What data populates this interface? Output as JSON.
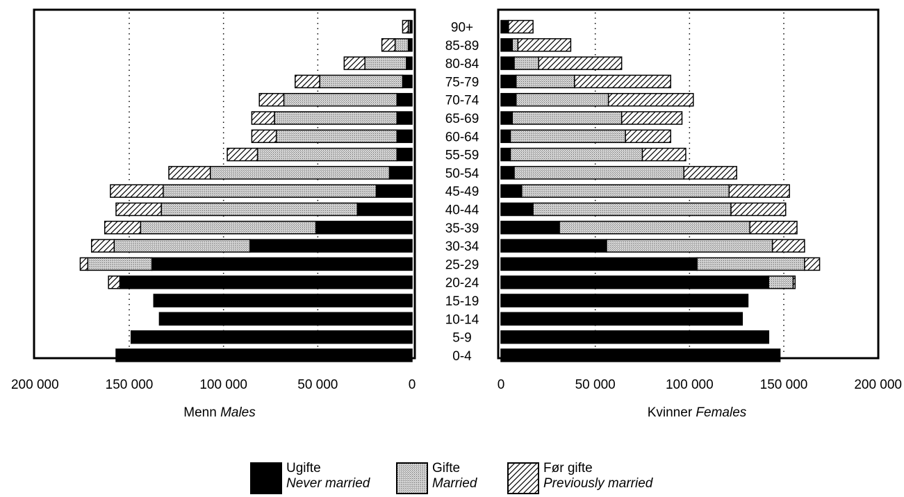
{
  "chart_data": [
    {
      "type": "bar",
      "orientation": "horizontal-left",
      "xlabel": "Menn",
      "xlabel_en": "Males",
      "xlim": [
        0,
        200000
      ],
      "xticks": [
        "200 000",
        "150 000",
        "100 000",
        "50 000",
        "0"
      ],
      "grid": "dotted vertical at 50 000, 100 000, 150 000",
      "categories": [
        "90+",
        "85-89",
        "80-84",
        "75-79",
        "70-74",
        "65-69",
        "60-64",
        "55-59",
        "50-54",
        "45-49",
        "40-44",
        "35-39",
        "30-34",
        "25-29",
        "20-24",
        "15-19",
        "10-14",
        "5-9",
        "0-4"
      ],
      "series": [
        {
          "name": "Ugifte",
          "values": [
            1000,
            2000,
            3000,
            5000,
            8000,
            8000,
            8000,
            8000,
            12000,
            19000,
            29000,
            51000,
            86000,
            138000,
            155000,
            137000,
            134000,
            149000,
            157000
          ]
        },
        {
          "name": "Gifte",
          "values": [
            1000,
            7000,
            22000,
            44000,
            60000,
            65000,
            64000,
            74000,
            95000,
            113000,
            104000,
            93000,
            72000,
            34000,
            0,
            0,
            0,
            0,
            0
          ]
        },
        {
          "name": "Før gifte",
          "values": [
            3000,
            7000,
            11000,
            13000,
            13000,
            12000,
            13000,
            16000,
            22000,
            28000,
            24000,
            19000,
            12000,
            4000,
            6000,
            0,
            0,
            0,
            0
          ]
        }
      ]
    },
    {
      "type": "bar",
      "orientation": "horizontal-right",
      "xlabel": "Kvinner",
      "xlabel_en": "Females",
      "xlim": [
        0,
        200000
      ],
      "xticks": [
        "0",
        "50 000",
        "100 000",
        "150 000",
        "200 000"
      ],
      "grid": "dotted vertical at 50 000, 100 000, 150 000",
      "categories": [
        "90+",
        "85-89",
        "80-84",
        "75-79",
        "70-74",
        "65-69",
        "60-64",
        "55-59",
        "50-54",
        "45-49",
        "40-44",
        "35-39",
        "30-34",
        "25-29",
        "20-24",
        "15-19",
        "10-14",
        "5-9",
        "0-4"
      ],
      "series": [
        {
          "name": "Ugifte",
          "values": [
            4000,
            6000,
            7000,
            8000,
            8000,
            6000,
            5000,
            5000,
            7000,
            11000,
            17000,
            31000,
            56000,
            104000,
            142000,
            131000,
            128000,
            142000,
            148000
          ]
        },
        {
          "name": "Gifte",
          "values": [
            0,
            3000,
            13000,
            31000,
            49000,
            58000,
            61000,
            70000,
            90000,
            110000,
            105000,
            101000,
            88000,
            57000,
            13000,
            0,
            0,
            0,
            0
          ]
        },
        {
          "name": "Før gifte",
          "values": [
            13000,
            28000,
            44000,
            51000,
            45000,
            32000,
            24000,
            23000,
            28000,
            32000,
            29000,
            25000,
            17000,
            8000,
            1000,
            0,
            0,
            0,
            0
          ]
        }
      ]
    }
  ],
  "legend": [
    {
      "name": "Ugifte",
      "name_en": "Never married",
      "fill": "solid-black"
    },
    {
      "name": "Gifte",
      "name_en": "Married",
      "fill": "grey-stipple"
    },
    {
      "name": "Før gifte",
      "name_en": "Previously married",
      "fill": "diagonal-hatch"
    }
  ],
  "colors": {
    "never_married": "#000000",
    "married": "#c8c8c8",
    "previously_married_hatch": "#000000"
  }
}
